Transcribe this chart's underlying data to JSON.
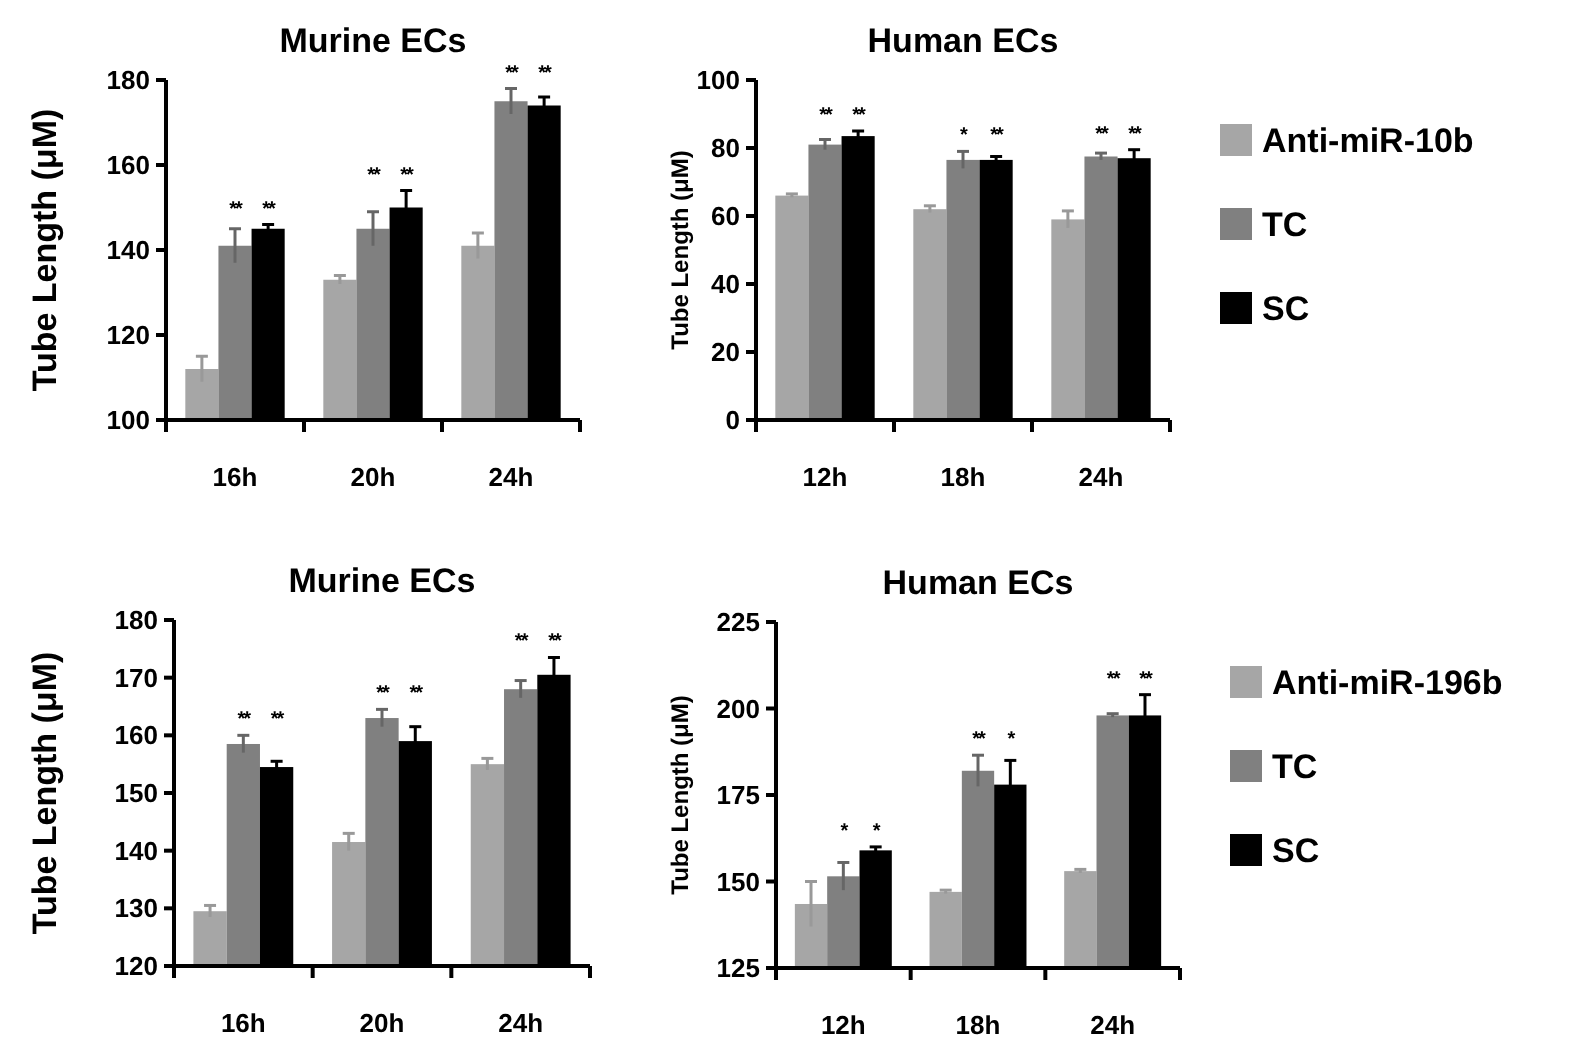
{
  "chart_data": [
    {
      "type": "bar",
      "title": "Murine ECs",
      "ylabel": "Tube Length (μM)",
      "categories": [
        "16h",
        "20h",
        "24h"
      ],
      "ylim": [
        100,
        180
      ],
      "yticks": [
        100,
        120,
        140,
        160,
        180
      ],
      "legend": false,
      "series": [
        {
          "color": "#a6a6a6",
          "values": [
            112,
            133,
            141
          ],
          "errors": [
            3,
            1,
            3
          ],
          "value_labels": [
            null,
            null,
            null
          ]
        },
        {
          "color": "#808080",
          "values": [
            141,
            145,
            175
          ],
          "errors": [
            4,
            4,
            3
          ],
          "value_labels": [
            "**",
            "**",
            "**"
          ]
        },
        {
          "color": "#000000",
          "values": [
            145,
            150,
            174
          ],
          "errors": [
            1,
            4,
            2
          ],
          "value_labels": [
            "**",
            "**",
            "**"
          ]
        }
      ]
    },
    {
      "type": "bar",
      "title": "Human ECs",
      "ylabel": "Tube Length (μM)",
      "categories": [
        "12h",
        "18h",
        "24h"
      ],
      "ylim": [
        0,
        100
      ],
      "yticks": [
        0,
        20,
        40,
        60,
        80,
        100
      ],
      "legend": "right",
      "series": [
        {
          "name": "Anti-miR-10b",
          "color": "#a6a6a6",
          "values": [
            66,
            62,
            59
          ],
          "errors": [
            0.5,
            1,
            2.5
          ],
          "value_labels": [
            null,
            null,
            null
          ]
        },
        {
          "name": "TC",
          "color": "#808080",
          "values": [
            81,
            76.5,
            77.5
          ],
          "errors": [
            1.5,
            2.5,
            1
          ],
          "value_labels": [
            "**",
            "*",
            "**"
          ]
        },
        {
          "name": "SC",
          "color": "#000000",
          "values": [
            83.5,
            76.5,
            77
          ],
          "errors": [
            1.5,
            1,
            2.5
          ],
          "value_labels": [
            "**",
            "**",
            "**"
          ]
        }
      ]
    },
    {
      "type": "bar",
      "title": "Murine ECs",
      "ylabel": "Tube Length (μM)",
      "categories": [
        "16h",
        "20h",
        "24h"
      ],
      "ylim": [
        120,
        180
      ],
      "yticks": [
        120,
        130,
        140,
        150,
        160,
        170,
        180
      ],
      "legend": false,
      "series": [
        {
          "color": "#a6a6a6",
          "values": [
            129.5,
            141.5,
            155
          ],
          "errors": [
            1,
            1.5,
            1
          ],
          "value_labels": [
            null,
            null,
            null
          ]
        },
        {
          "color": "#808080",
          "values": [
            158.5,
            163,
            168
          ],
          "errors": [
            1.5,
            1.5,
            1.5
          ],
          "value_labels": [
            "**",
            "**",
            "**"
          ]
        },
        {
          "color": "#000000",
          "values": [
            154.5,
            159,
            170.5
          ],
          "errors": [
            1,
            2.5,
            3
          ],
          "value_labels": [
            "**",
            "**",
            "**"
          ]
        }
      ]
    },
    {
      "type": "bar",
      "title": "Human ECs",
      "ylabel": "Tube Length (μM)",
      "categories": [
        "12h",
        "18h",
        "24h"
      ],
      "ylim": [
        125,
        225
      ],
      "yticks": [
        125,
        150,
        175,
        200,
        225
      ],
      "legend": "right",
      "series": [
        {
          "name": "Anti-miR-196b",
          "color": "#a6a6a6",
          "values": [
            143.5,
            147,
            153
          ],
          "errors": [
            6.5,
            0.5,
            0.5
          ],
          "value_labels": [
            null,
            null,
            null
          ]
        },
        {
          "name": "TC",
          "color": "#808080",
          "values": [
            151.5,
            182,
            198
          ],
          "errors": [
            4,
            4.5,
            0.5
          ],
          "value_labels": [
            "*",
            "**",
            "**"
          ]
        },
        {
          "name": "SC",
          "color": "#000000",
          "values": [
            159,
            178,
            198
          ],
          "errors": [
            1,
            7,
            6
          ],
          "value_labels": [
            "*",
            "*",
            "**"
          ]
        }
      ]
    }
  ]
}
